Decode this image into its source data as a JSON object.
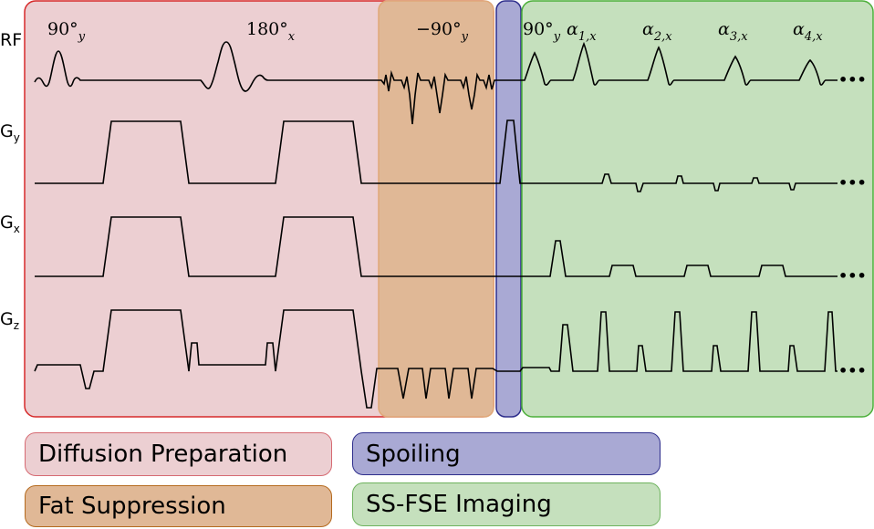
{
  "rows": {
    "rf": "RF",
    "gy_main": "G",
    "gy_sub": "y",
    "gx_main": "G",
    "gx_sub": "x",
    "gz_main": "G",
    "gz_sub": "z"
  },
  "pulses": {
    "p1_main": "90°",
    "p1_sub": "y",
    "p2_main": "180°",
    "p2_sub": "x",
    "p3_main": "−90°",
    "p3_sub": "y",
    "p4_main": "90°",
    "p4_sub": "y",
    "a1_main": "α",
    "a1_sub": "1,x",
    "a2_main": "α",
    "a2_sub": "2,x",
    "a3_main": "α",
    "a3_sub": "3,x",
    "a4_main": "α",
    "a4_sub": "4,x"
  },
  "legend": {
    "diffusion": "Diffusion Preparation",
    "fat": "Fat Suppression",
    "spoiling": "Spoiling",
    "ssfse": "SS-FSE Imaging"
  },
  "colors": {
    "diffusion_fill": "#eccfd2",
    "diffusion_border": "#d62a2a",
    "fat_fill": "#e0b896",
    "fat_border": "#e0a878",
    "spoil_fill": "#a9a9d4",
    "spoil_border": "#2e2e8c",
    "ssfse_fill": "#c5e0bd",
    "ssfse_border": "#4caf3a"
  }
}
